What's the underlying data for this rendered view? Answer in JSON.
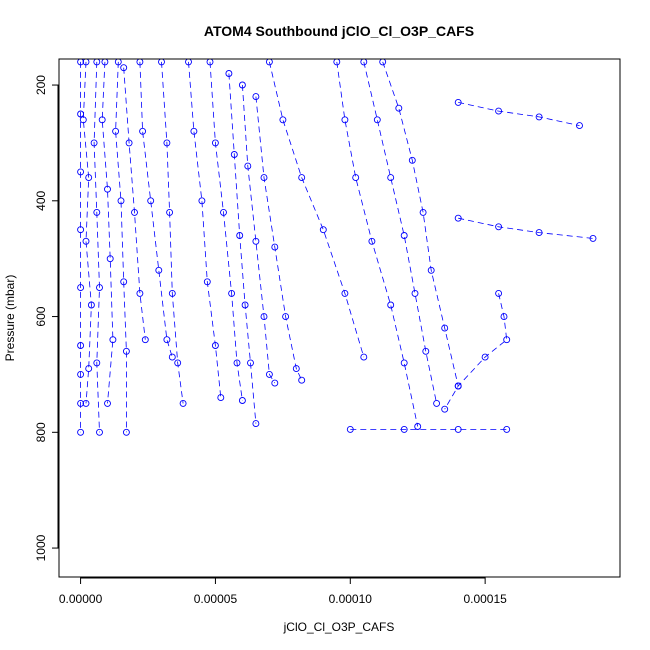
{
  "chart_data": {
    "type": "scatter",
    "title": "ATOM4 Southbound jClO_Cl_O3P_CAFS",
    "xlabel": "jClO_Cl_O3P_CAFS",
    "ylabel": "Pressure (mbar)",
    "xlim": [
      -8e-06,
      0.0002
    ],
    "ylim": [
      1050,
      155
    ],
    "y_reversed": true,
    "x_ticks": [
      0.0,
      5e-05,
      0.0001,
      0.00015
    ],
    "x_tick_labels": [
      "0.00000",
      "0.00005",
      "0.00010",
      "0.00015"
    ],
    "y_ticks": [
      200,
      400,
      600,
      800,
      1000
    ],
    "y_tick_labels": [
      "200",
      "400",
      "600",
      "800",
      "1000"
    ],
    "marker": "open-circle",
    "line_style": "dashed",
    "grid": false,
    "legend": "none",
    "colors": {
      "series": "#0000ff",
      "axes": "#000000",
      "background": "#ffffff"
    },
    "series": [
      {
        "x": [
          0.0,
          0.0,
          0.0,
          0.0,
          0.0,
          0.0,
          0.0,
          0.0,
          0.0
        ],
        "y": [
          160,
          250,
          350,
          450,
          550,
          650,
          700,
          750,
          800
        ]
      },
      {
        "x": [
          2e-06,
          1e-06,
          3e-06,
          2e-06,
          4e-06,
          3e-06,
          2e-06
        ],
        "y": [
          160,
          260,
          360,
          470,
          580,
          690,
          750
        ]
      },
      {
        "x": [
          6e-06,
          5e-06,
          6e-06,
          7e-06,
          6e-06,
          7e-06
        ],
        "y": [
          160,
          300,
          420,
          550,
          680,
          800
        ]
      },
      {
        "x": [
          9e-06,
          8e-06,
          1e-05,
          1.1e-05,
          1.2e-05,
          1e-05
        ],
        "y": [
          160,
          260,
          380,
          500,
          640,
          750
        ]
      },
      {
        "x": [
          1.4e-05,
          1.3e-05,
          1.5e-05,
          1.6e-05,
          1.7e-05,
          1.7e-05
        ],
        "y": [
          160,
          280,
          400,
          540,
          660,
          800
        ]
      },
      {
        "x": [
          1.6e-05,
          1.8e-05,
          2e-05,
          2.2e-05,
          2.4e-05
        ],
        "y": [
          170,
          300,
          420,
          560,
          640
        ]
      },
      {
        "x": [
          2.2e-05,
          2.3e-05,
          2.6e-05,
          2.9e-05,
          3.2e-05,
          3.4e-05
        ],
        "y": [
          160,
          280,
          400,
          520,
          640,
          670
        ]
      },
      {
        "x": [
          3e-05,
          3.2e-05,
          3.3e-05,
          3.4e-05,
          3.6e-05,
          3.8e-05
        ],
        "y": [
          160,
          300,
          420,
          560,
          680,
          750
        ]
      },
      {
        "x": [
          4e-05,
          4.2e-05,
          4.5e-05,
          4.7e-05,
          5e-05,
          5.2e-05
        ],
        "y": [
          160,
          280,
          400,
          540,
          650,
          740
        ]
      },
      {
        "x": [
          4.8e-05,
          5e-05,
          5.3e-05,
          5.6e-05,
          5.8e-05,
          6e-05
        ],
        "y": [
          160,
          300,
          420,
          560,
          680,
          745
        ]
      },
      {
        "x": [
          5.5e-05,
          5.7e-05,
          5.9e-05,
          6.1e-05,
          6.3e-05,
          6.5e-05
        ],
        "y": [
          180,
          320,
          460,
          580,
          680,
          785
        ]
      },
      {
        "x": [
          6e-05,
          6.2e-05,
          6.5e-05,
          6.8e-05,
          7e-05,
          7.2e-05
        ],
        "y": [
          200,
          340,
          470,
          600,
          700,
          715
        ]
      },
      {
        "x": [
          6.5e-05,
          6.8e-05,
          7.2e-05,
          7.6e-05,
          8e-05,
          8.2e-05
        ],
        "y": [
          220,
          360,
          480,
          600,
          690,
          710
        ]
      },
      {
        "x": [
          7e-05,
          7.5e-05,
          8.2e-05,
          9e-05,
          9.8e-05,
          0.000105
        ],
        "y": [
          160,
          260,
          360,
          450,
          560,
          670
        ]
      },
      {
        "x": [
          9.5e-05,
          9.8e-05,
          0.000102,
          0.000108,
          0.000115,
          0.00012,
          0.000125
        ],
        "y": [
          160,
          260,
          360,
          470,
          580,
          680,
          790
        ]
      },
      {
        "x": [
          0.000105,
          0.00011,
          0.000115,
          0.00012,
          0.000124,
          0.000128,
          0.000132
        ],
        "y": [
          160,
          260,
          360,
          460,
          560,
          660,
          750
        ]
      },
      {
        "x": [
          0.000112,
          0.000118,
          0.000123,
          0.000127,
          0.00013,
          0.000135,
          0.00014
        ],
        "y": [
          160,
          240,
          330,
          420,
          520,
          620,
          720
        ]
      },
      {
        "x": [
          0.00014,
          0.000155,
          0.00017,
          0.000185
        ],
        "y": [
          230,
          245,
          255,
          270
        ]
      },
      {
        "x": [
          0.00014,
          0.000155,
          0.00017,
          0.00019
        ],
        "y": [
          430,
          445,
          455,
          465
        ]
      },
      {
        "x": [
          0.0001,
          0.00012,
          0.00014,
          0.000158
        ],
        "y": [
          795,
          795,
          795,
          795
        ]
      },
      {
        "x": [
          0.000155,
          0.000157,
          0.000158,
          0.00015,
          0.00014,
          0.000135
        ],
        "y": [
          560,
          600,
          640,
          670,
          720,
          760
        ]
      }
    ]
  }
}
